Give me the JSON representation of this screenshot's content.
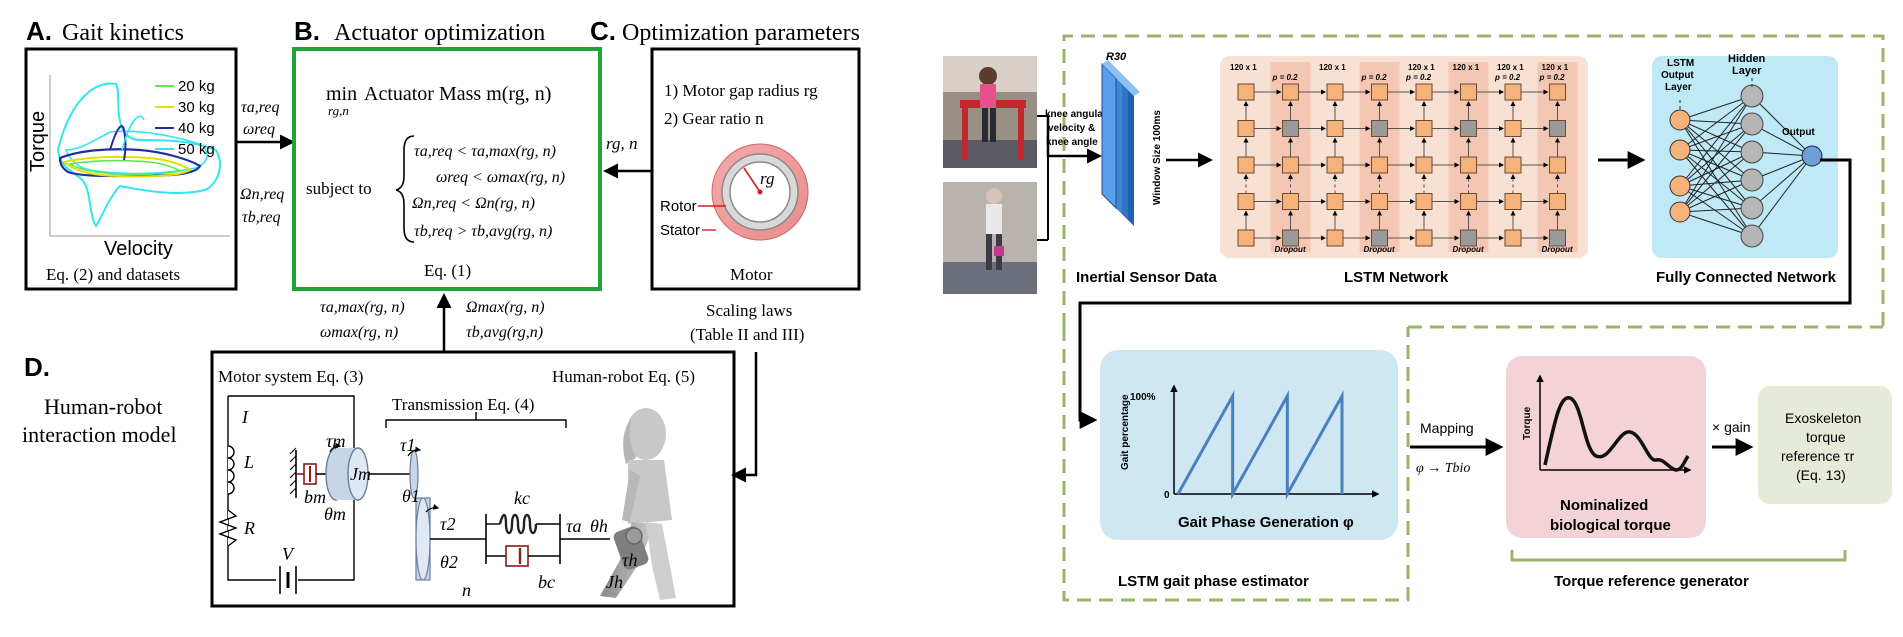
{
  "left": {
    "panel_a": {
      "heading_letter": "A.",
      "heading_text": "Gait kinetics",
      "ylabel": "Torque",
      "xlabel": "Velocity",
      "caption": "Eq. (2) and datasets",
      "legend": [
        {
          "label": "20 kg",
          "color": "#5ee84b"
        },
        {
          "label": "30 kg",
          "color": "#e2e000"
        },
        {
          "label": "40 kg",
          "color": "#1f2f9e"
        },
        {
          "label": "50 kg",
          "color": "#31e6f0"
        }
      ]
    },
    "panel_b": {
      "heading_letter": "B.",
      "heading_text": "Actuator optimization",
      "objective_min": "min",
      "objective_sub": "rg,n",
      "objective_text": "Actuator Mass m(rg, n)",
      "subject_to": "subject to",
      "constraints": [
        "τa,req < τa,max(rg, n)",
        "ωreq < ωmax(rg, n)",
        "Ωn,req < Ωn(rg, n)",
        "τb,req > τb,avg(rg, n)"
      ],
      "eq": "Eq. (1)",
      "border_color": "#1fa33a"
    },
    "panel_c": {
      "heading_letter": "C.",
      "heading_text": "Optimization parameters",
      "items": [
        "1)   Motor gap radius rg",
        "2)   Gear ratio n"
      ],
      "rotor": "Rotor",
      "stator": "Stator",
      "rg": "rg",
      "motor": "Motor",
      "scaling": [
        "Scaling laws",
        "(Table II and III)"
      ]
    },
    "flows": {
      "a_to_b": [
        "τa,req",
        "ωreq",
        "Ωn,req",
        "τb,req"
      ],
      "c_to_b": "rg, n",
      "d_to_b_left": [
        "τa,max(rg, n)",
        "ωmax(rg, n)"
      ],
      "d_to_b_right": [
        "Ωmax(rg, n)",
        "τb,avg(rg,n)"
      ]
    },
    "panel_d": {
      "heading_letter": "D.",
      "heading_text": [
        "Human-robot",
        "interaction model"
      ],
      "motor_system": "Motor system Eq. (3)",
      "transmission": "Transmission Eq. (4)",
      "human_robot": "Human-robot Eq. (5)",
      "symbols": {
        "I": "I",
        "L": "L",
        "R": "R",
        "V": "V",
        "tau_m": "τm",
        "J_m": "Jm",
        "b_m": "bm",
        "theta_m": "θm",
        "tau_1": "τ1",
        "theta_1": "θ1",
        "tau_2": "τ2",
        "theta_2": "θ2",
        "n": "n",
        "k_c": "kc",
        "b_c": "bc",
        "tau_a": "τa",
        "theta_h": "θh",
        "tau_h": "τh",
        "J_h": "Jh"
      }
    }
  },
  "right": {
    "inertial_label": "Inertial Sensor Data",
    "input_label": [
      "knee angular",
      "velocity &",
      "knee angle"
    ],
    "cube_label": "R30",
    "window_label": "Window Size 100ms",
    "lstm_title": "LSTM Network",
    "lstm_dims": [
      "120 x 1",
      "120 x 1",
      "120 x 1",
      "120 x 1",
      "120 x 1",
      "120 x 1"
    ],
    "lstm_p": [
      "p = 0.2",
      "p = 0.2",
      "p = 0.2",
      "p = 0.2",
      "p = 0.2"
    ],
    "dropout": "Dropout",
    "fc_title": "Fully Connected Network",
    "fc_layers": [
      "LSTM",
      "Output",
      "Layer"
    ],
    "hidden_layer": [
      "Hidden",
      "Layer"
    ],
    "output_label": "Output",
    "gait_ylabel": "Gait percentage",
    "gait_100": "100%",
    "gait_0": "0",
    "gait_title": "Gait Phase Generation φ",
    "estimator_title": "LSTM gait phase estimator",
    "mapping": "Mapping",
    "mapping_eq": "φ → Tbio",
    "torque_ylabel": "Torque",
    "torque_title": [
      "Nominalized",
      "biological torque"
    ],
    "gain": "× gain",
    "exo_text": [
      "Exoskeleton",
      "torque",
      "reference τr",
      "(Eq. 13)"
    ],
    "generator_title": "Torque reference generator",
    "chart_data": [
      {
        "type": "line",
        "title": "Gait Phase Generation φ",
        "ylabel": "Gait percentage",
        "yticks": [
          "0",
          "100%"
        ],
        "x": [
          0,
          1,
          1,
          2,
          2,
          3,
          3
        ],
        "y": [
          0,
          100,
          0,
          100,
          0,
          100,
          0
        ]
      }
    ]
  }
}
